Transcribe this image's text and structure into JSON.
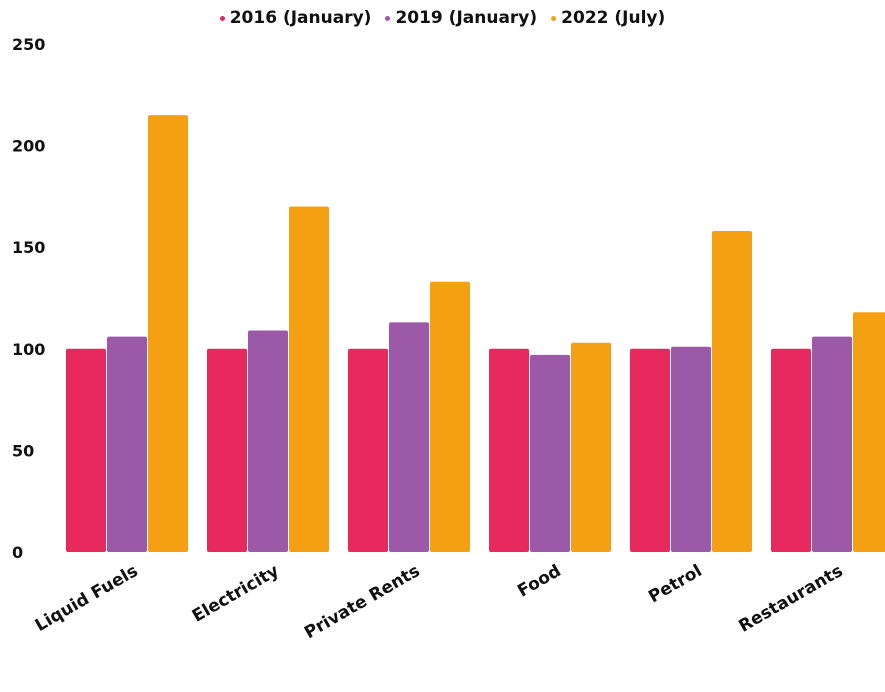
{
  "chart_data": {
    "type": "bar",
    "categories": [
      "Liquid Fuels",
      "Electricity",
      "Private Rents",
      "Food",
      "Petrol",
      "Restaurants"
    ],
    "series": [
      {
        "name": "2016 (January)",
        "color": "#e8295e",
        "values": [
          100,
          100,
          100,
          100,
          100,
          100
        ]
      },
      {
        "name": "2019 (January)",
        "color": "#9b59a8",
        "values": [
          106,
          109,
          113,
          97,
          101,
          106
        ]
      },
      {
        "name": "2022 (July)",
        "color": "#f5a012",
        "values": [
          215,
          170,
          133,
          103,
          158,
          118
        ]
      }
    ],
    "y_ticks": [
      "0",
      "50",
      "100",
      "150",
      "200",
      "250"
    ],
    "ylim": [
      0,
      250
    ],
    "grid": false,
    "legend_position": "top-center",
    "title": "",
    "xlabel": "",
    "ylabel": ""
  }
}
